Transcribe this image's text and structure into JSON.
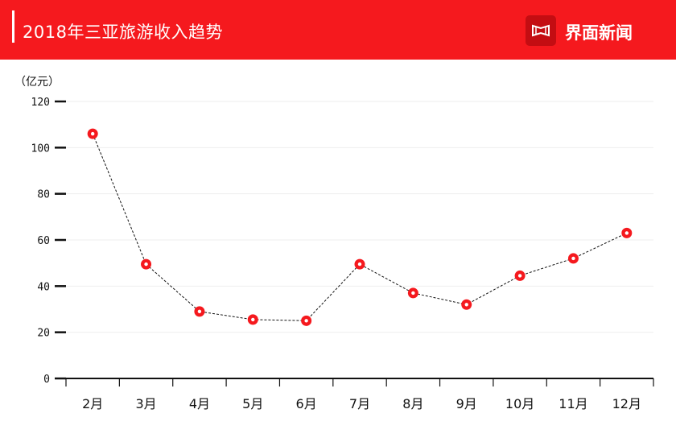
{
  "header": {
    "title": "2018年三亚旅游收入趋势",
    "brand": "界面新闻",
    "accent_color": "#f5191e",
    "brand_icon": "jiemian-logo-icon"
  },
  "chart_data": {
    "type": "line",
    "unit_label": "（亿元）",
    "categories": [
      "2月",
      "3月",
      "4月",
      "5月",
      "6月",
      "7月",
      "8月",
      "9月",
      "10月",
      "11月",
      "12月"
    ],
    "values": [
      106,
      49.5,
      29,
      25.5,
      25,
      49.5,
      37,
      32,
      44.5,
      52,
      63
    ],
    "ylim": [
      0,
      120
    ],
    "yticks": [
      0,
      20,
      40,
      60,
      80,
      100,
      120
    ],
    "grid": true,
    "line_color": "#111111",
    "line_style": "dashed",
    "marker_color": "#f5191e"
  }
}
